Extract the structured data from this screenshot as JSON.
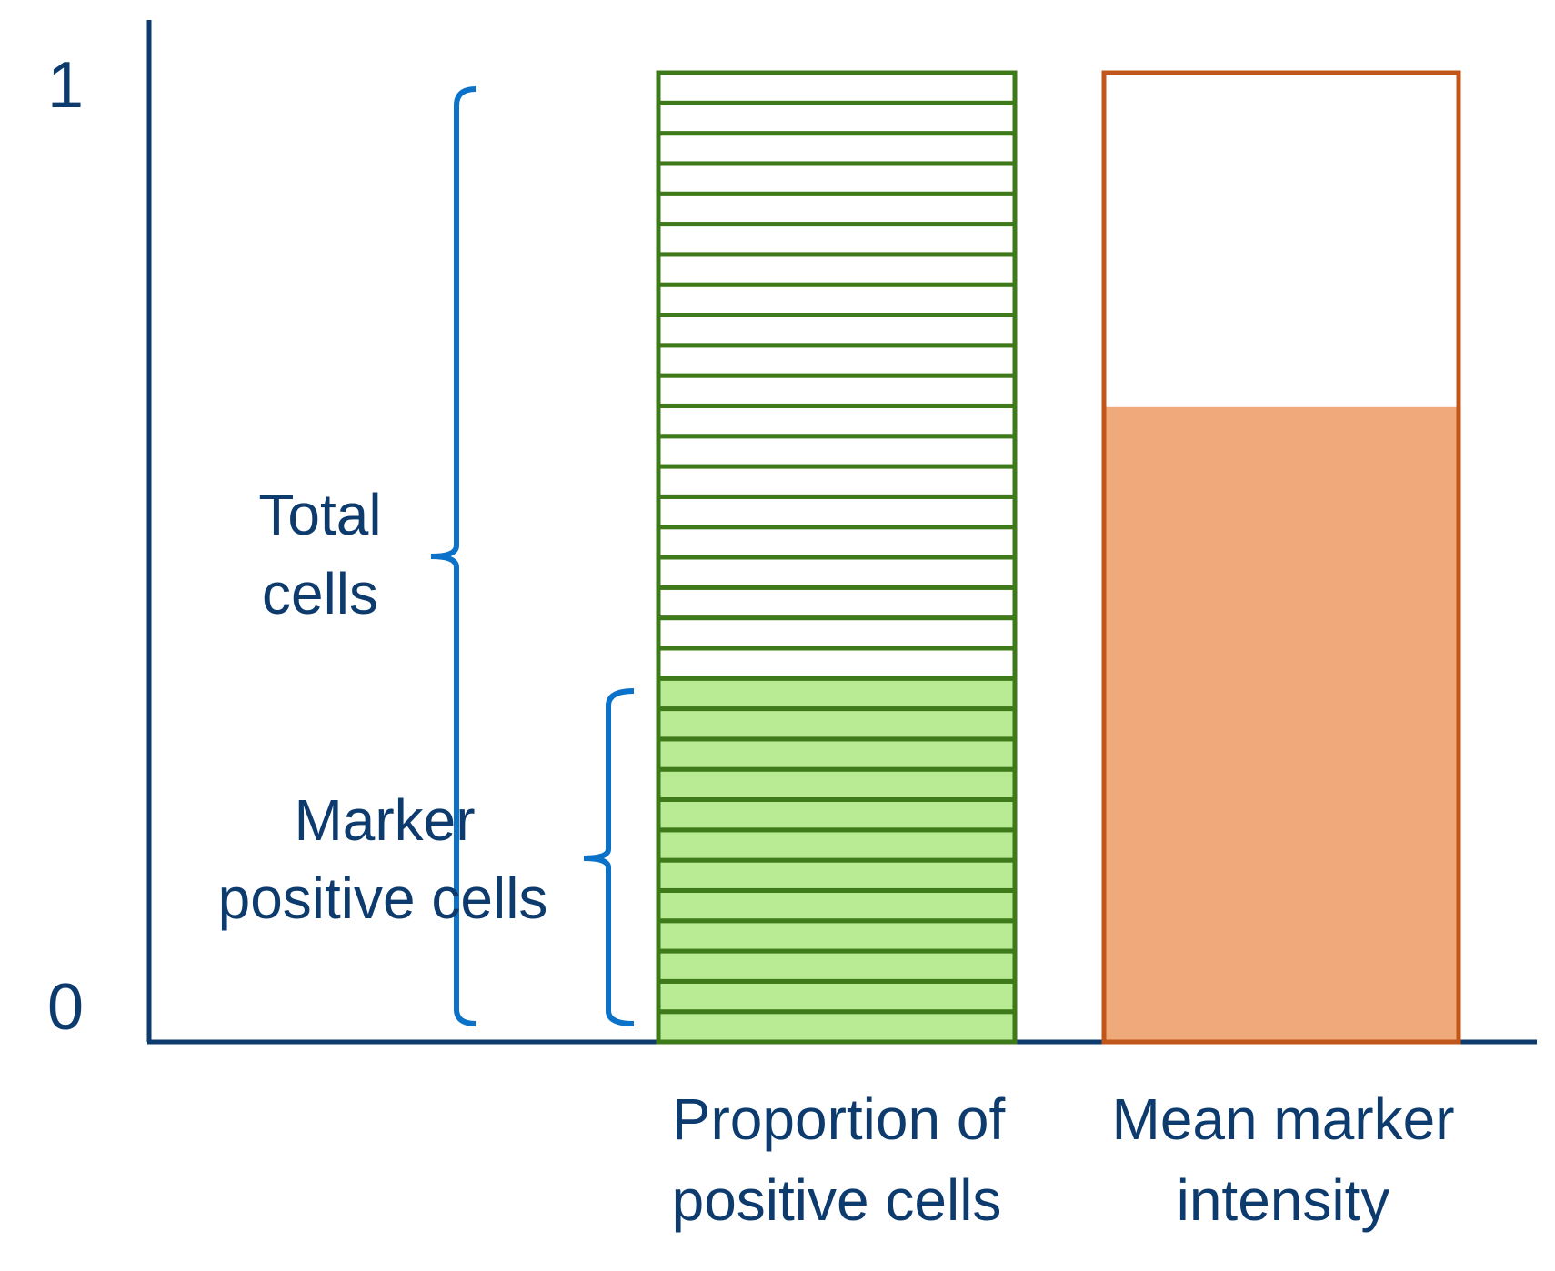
{
  "y_axis": {
    "top_tick": "1",
    "bottom_tick": "0"
  },
  "brackets": {
    "total": {
      "line1": "Total",
      "line2": "cells"
    },
    "marker": {
      "line1": "Marker",
      "line2": "positive cells"
    }
  },
  "bars": {
    "proportion": {
      "label_line1": "Proportion of",
      "label_line2": "positive cells",
      "total_segments": 32,
      "positive_segments": 12
    },
    "intensity": {
      "label_line1": "Mean marker",
      "label_line2": "intensity",
      "fill_fraction": 0.655
    }
  },
  "colors": {
    "axis": "#0d3b6e",
    "bracket": "#0a72c8",
    "text": "#0d3b6e",
    "green_outline": "#3f7a1a",
    "green_fill": "#b8eb93",
    "orange_outline": "#c0561a",
    "orange_fill": "#f0a97b"
  }
}
